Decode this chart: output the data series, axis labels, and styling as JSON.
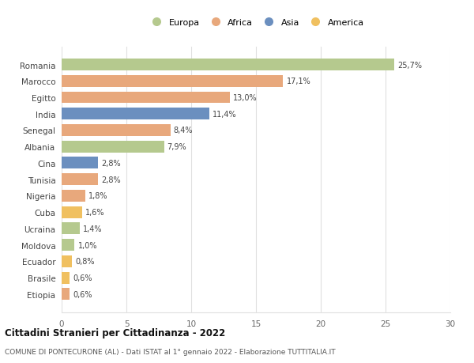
{
  "categories": [
    "Romania",
    "Marocco",
    "Egitto",
    "India",
    "Senegal",
    "Albania",
    "Cina",
    "Tunisia",
    "Nigeria",
    "Cuba",
    "Ucraina",
    "Moldova",
    "Ecuador",
    "Brasile",
    "Etiopia"
  ],
  "values": [
    25.7,
    17.1,
    13.0,
    11.4,
    8.4,
    7.9,
    2.8,
    2.8,
    1.8,
    1.6,
    1.4,
    1.0,
    0.8,
    0.6,
    0.6
  ],
  "labels": [
    "25,7%",
    "17,1%",
    "13,0%",
    "11,4%",
    "8,4%",
    "7,9%",
    "2,8%",
    "2,8%",
    "1,8%",
    "1,6%",
    "1,4%",
    "1,0%",
    "0,8%",
    "0,6%",
    "0,6%"
  ],
  "colors": [
    "#b5c98e",
    "#e8a87c",
    "#e8a87c",
    "#6b8fbf",
    "#e8a87c",
    "#b5c98e",
    "#6b8fbf",
    "#e8a87c",
    "#e8a87c",
    "#f0c060",
    "#b5c98e",
    "#b5c98e",
    "#f0c060",
    "#f0c060",
    "#e8a87c"
  ],
  "legend_labels": [
    "Europa",
    "Africa",
    "Asia",
    "America"
  ],
  "legend_colors": [
    "#b5c98e",
    "#e8a87c",
    "#6b8fbf",
    "#f0c060"
  ],
  "title": "Cittadini Stranieri per Cittadinanza - 2022",
  "subtitle": "COMUNE DI PONTECURONE (AL) - Dati ISTAT al 1° gennaio 2022 - Elaborazione TUTTITALIA.IT",
  "xlim": [
    0,
    30
  ],
  "xticks": [
    0,
    5,
    10,
    15,
    20,
    25,
    30
  ],
  "bg_color": "#ffffff",
  "grid_color": "#e0e0e0",
  "bar_height": 0.72
}
